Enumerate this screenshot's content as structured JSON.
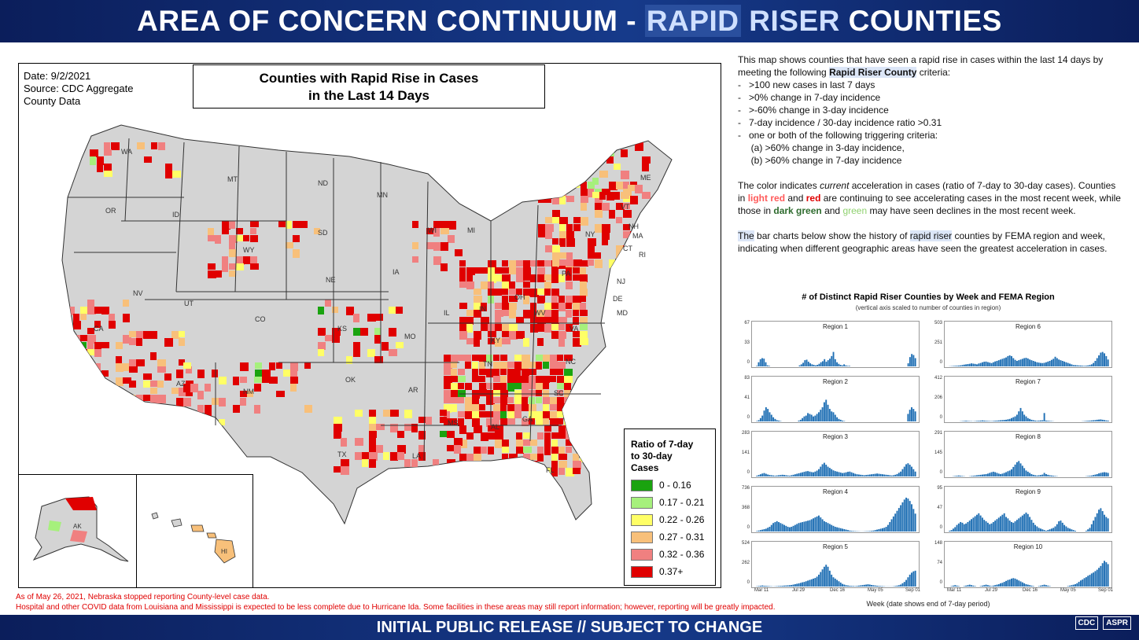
{
  "header": {
    "title_part1": "AREA OF CONCERN CONTINUUM - ",
    "title_part2": "RAPID",
    "title_part3": " RISER",
    "title_part4": " COUNTIES"
  },
  "map": {
    "date": "Date: 9/2/2021",
    "source_line1": "Source: CDC Aggregate",
    "source_line2": "County Data",
    "title_line1": "Counties with Rapid Rise in Cases",
    "title_line2": "in the Last 14 Days",
    "state_labels": [
      "WA",
      "OR",
      "ID",
      "MT",
      "ND",
      "SD",
      "WY",
      "MN",
      "WI",
      "MI",
      "NE",
      "IA",
      "NV",
      "UT",
      "CO",
      "CA",
      "KS",
      "MO",
      "IL",
      "IN",
      "OH",
      "PA",
      "NY",
      "VT",
      "ME",
      "NH",
      "MA",
      "CT",
      "RI",
      "NJ",
      "DE",
      "MD",
      "VA",
      "WV",
      "KY",
      "TN",
      "NC",
      "SC",
      "GA",
      "AL",
      "MS",
      "AR",
      "LA",
      "OK",
      "TX",
      "NM",
      "AZ",
      "FL",
      "AK",
      "HI"
    ]
  },
  "legend": {
    "title_line1": "Ratio of 7-day",
    "title_line2": "to 30-day",
    "title_line3": "Cases",
    "items": [
      {
        "label": "0 - 0.16",
        "color": "#1aa30f"
      },
      {
        "label": "0.17 - 0.21",
        "color": "#a6f07c"
      },
      {
        "label": "0.22 - 0.26",
        "color": "#ffff66"
      },
      {
        "label": "0.27 - 0.31",
        "color": "#f8c07a"
      },
      {
        "label": "0.32 - 0.36",
        "color": "#f08080"
      },
      {
        "label": "0.37+",
        "color": "#e00000"
      }
    ]
  },
  "notes": {
    "line1": "As of May 26, 2021, Nebraska stopped reporting County-level case data.",
    "line2": "Hospital and other COVID data from Louisiana and Mississippi is expected to be less complete due to Hurricane Ida. Some facilities in these areas may still report information; however, reporting will be greatly impacted."
  },
  "description": {
    "p1_a": "This map shows counties that have seen a rapid rise in cases within the last 14 days by meeting the following ",
    "p1_b": "Rapid Riser County",
    "p1_c": " criteria:",
    "criteria": [
      "-   >100 new cases in last 7 days",
      "-   >0% change in 7-day incidence",
      "-   >-60% change in 3-day incidence",
      "-   7-day incidence / 30-day incidence ratio >0.31",
      "-   one or both of the following triggering criteria:",
      "     (a) >60% change in 3-day incidence,",
      "     (b) >60% change in 7-day incidence"
    ],
    "p2_a": "The color indicates ",
    "p2_b": "current",
    "p2_c": " acceleration in cases (ratio of 7-day to 30-day cases). Counties in ",
    "p2_d": "light red",
    "p2_e": " and ",
    "p2_f": "red",
    "p2_g": "  are continuing to see accelerating cases in the most recent week, while those in ",
    "p2_h": "dark green",
    "p2_i": " and ",
    "p2_j": "green",
    "p2_k": "  may have seen declines in the most recent week.",
    "p3_a": "The",
    "p3_b": " bar charts below show the history of ",
    "p3_c": "rapid riser",
    "p3_d": " counties by FEMA region and week, indicating when different geographic areas have seen the greatest acceleration in cases."
  },
  "chart_data": {
    "type": "bar",
    "title": "# of Distinct Rapid Riser Counties by Week and FEMA Region",
    "subtitle": "(vertical axis scaled to number of counties in region)",
    "xlabel": "Week (date shows end of 7-day period)",
    "x_tick_labels": [
      "Mar 11",
      "Jul 29",
      "Dec 16",
      "May 05",
      "Sep 01"
    ],
    "panels": [
      {
        "name": "Region 1",
        "ymax": 67,
        "yticks": [
          "67",
          "33",
          "0"
        ],
        "values": [
          0,
          1,
          8,
          14,
          16,
          15,
          8,
          2,
          1,
          0,
          0,
          0,
          0,
          0,
          0,
          0,
          0,
          0,
          0,
          0,
          0,
          0,
          0,
          0,
          0,
          2,
          4,
          7,
          12,
          13,
          9,
          6,
          4,
          3,
          2,
          3,
          5,
          8,
          10,
          14,
          9,
          12,
          15,
          20,
          28,
          14,
          8,
          5,
          3,
          2,
          4,
          2,
          1,
          1,
          0,
          0,
          0,
          0,
          0,
          0,
          0,
          0,
          0,
          0,
          0,
          0,
          0,
          0,
          0,
          0,
          0,
          0,
          0,
          0,
          0,
          0,
          0,
          0,
          0,
          0,
          0,
          0,
          0,
          0,
          0,
          0,
          6,
          18,
          24,
          22,
          16
        ]
      },
      {
        "name": "Region 6",
        "ymax": 503,
        "yticks": [
          "503",
          "251",
          "0"
        ],
        "values": [
          0,
          2,
          4,
          6,
          8,
          10,
          12,
          15,
          20,
          26,
          30,
          34,
          38,
          44,
          40,
          36,
          30,
          42,
          50,
          60,
          68,
          70,
          62,
          55,
          48,
          60,
          72,
          80,
          90,
          100,
          110,
          120,
          130,
          150,
          160,
          150,
          120,
          95,
          80,
          90,
          100,
          110,
          120,
          125,
          115,
          100,
          90,
          80,
          70,
          60,
          55,
          50,
          48,
          52,
          60,
          70,
          80,
          95,
          110,
          140,
          120,
          100,
          90,
          80,
          70,
          60,
          50,
          40,
          30,
          20,
          18,
          16,
          14,
          12,
          10,
          8,
          10,
          14,
          20,
          30,
          50,
          80,
          120,
          160,
          200,
          210,
          190,
          150,
          100
        ]
      },
      {
        "name": "Region 2",
        "ymax": 83,
        "yticks": [
          "83",
          "41",
          "0"
        ],
        "values": [
          0,
          1,
          3,
          8,
          14,
          26,
          34,
          30,
          22,
          16,
          10,
          6,
          3,
          2,
          1,
          0,
          0,
          0,
          0,
          0,
          0,
          0,
          0,
          0,
          2,
          4,
          8,
          12,
          14,
          20,
          18,
          16,
          12,
          14,
          18,
          22,
          28,
          34,
          46,
          52,
          40,
          30,
          24,
          22,
          16,
          10,
          6,
          4,
          2,
          1,
          0,
          0,
          0,
          0,
          0,
          0,
          0,
          0,
          0,
          0,
          0,
          0,
          0,
          0,
          0,
          0,
          0,
          0,
          0,
          0,
          0,
          0,
          0,
          0,
          0,
          0,
          0,
          0,
          0,
          0,
          0,
          0,
          0,
          0,
          18,
          28,
          34,
          30,
          24
        ]
      },
      {
        "name": "Region 7",
        "ymax": 412,
        "yticks": [
          "412",
          "206",
          "0"
        ],
        "values": [
          0,
          0,
          0,
          0,
          0,
          0,
          0,
          2,
          4,
          6,
          8,
          6,
          4,
          3,
          2,
          4,
          6,
          8,
          10,
          12,
          10,
          8,
          6,
          5,
          4,
          6,
          8,
          10,
          12,
          14,
          16,
          18,
          20,
          25,
          30,
          40,
          50,
          60,
          80,
          120,
          160,
          120,
          80,
          60,
          40,
          30,
          20,
          15,
          10,
          8,
          10,
          12,
          14,
          100,
          10,
          8,
          6,
          4,
          2,
          0,
          0,
          0,
          0,
          0,
          0,
          0,
          0,
          0,
          0,
          0,
          0,
          0,
          0,
          0,
          2,
          4,
          6,
          8,
          10,
          12,
          14,
          16,
          20,
          22,
          24,
          20,
          16,
          12,
          10
        ]
      },
      {
        "name": "Region 3",
        "ymax": 283,
        "yticks": [
          "283",
          "141",
          "0"
        ],
        "values": [
          0,
          6,
          12,
          18,
          24,
          28,
          22,
          16,
          12,
          10,
          8,
          6,
          8,
          10,
          12,
          14,
          12,
          10,
          8,
          6,
          10,
          14,
          18,
          22,
          26,
          30,
          34,
          38,
          42,
          44,
          40,
          36,
          34,
          40,
          48,
          60,
          80,
          100,
          112,
          96,
          80,
          70,
          60,
          50,
          44,
          40,
          36,
          32,
          28,
          30,
          34,
          38,
          40,
          34,
          28,
          22,
          18,
          16,
          14,
          12,
          10,
          12,
          14,
          16,
          18,
          20,
          22,
          24,
          22,
          20,
          18,
          16,
          14,
          12,
          10,
          8,
          10,
          14,
          20,
          30,
          40,
          60,
          80,
          100,
          108,
          96,
          80,
          60,
          40
        ]
      },
      {
        "name": "Region 8",
        "ymax": 291,
        "yticks": [
          "291",
          "145",
          "0"
        ],
        "values": [
          0,
          0,
          0,
          2,
          4,
          6,
          8,
          6,
          4,
          2,
          0,
          0,
          2,
          4,
          6,
          8,
          10,
          12,
          14,
          16,
          18,
          20,
          24,
          30,
          36,
          40,
          36,
          30,
          24,
          20,
          24,
          30,
          36,
          44,
          50,
          60,
          80,
          100,
          120,
          130,
          110,
          90,
          70,
          50,
          40,
          30,
          20,
          14,
          10,
          8,
          10,
          12,
          16,
          30,
          20,
          14,
          10,
          8,
          6,
          4,
          2,
          0,
          0,
          0,
          0,
          0,
          0,
          0,
          0,
          0,
          0,
          0,
          0,
          0,
          0,
          0,
          2,
          4,
          6,
          8,
          12,
          16,
          20,
          26,
          30,
          34,
          36,
          34,
          30
        ]
      },
      {
        "name": "Region 4",
        "ymax": 736,
        "yticks": [
          "736",
          "368",
          "0"
        ],
        "values": [
          0,
          10,
          20,
          30,
          40,
          50,
          60,
          80,
          100,
          140,
          180,
          200,
          220,
          200,
          180,
          160,
          140,
          120,
          100,
          90,
          100,
          120,
          140,
          160,
          180,
          190,
          200,
          210,
          220,
          230,
          240,
          260,
          280,
          300,
          320,
          340,
          300,
          260,
          220,
          200,
          180,
          160,
          140,
          120,
          100,
          90,
          80,
          70,
          60,
          50,
          40,
          30,
          20,
          14,
          10,
          8,
          6,
          4,
          2,
          2,
          4,
          6,
          8,
          10,
          14,
          20,
          30,
          40,
          50,
          60,
          70,
          80,
          100,
          140,
          200,
          260,
          320,
          380,
          440,
          500,
          560,
          620,
          680,
          720,
          700,
          650,
          580,
          480,
          380
        ]
      },
      {
        "name": "Region 9",
        "ymax": 95,
        "yticks": [
          "95",
          "47",
          "0"
        ],
        "values": [
          0,
          2,
          4,
          8,
          12,
          18,
          22,
          26,
          24,
          20,
          22,
          26,
          30,
          34,
          38,
          42,
          46,
          50,
          44,
          38,
          32,
          28,
          24,
          20,
          22,
          26,
          30,
          34,
          38,
          42,
          46,
          50,
          40,
          36,
          30,
          26,
          24,
          28,
          32,
          36,
          40,
          44,
          48,
          52,
          48,
          40,
          32,
          24,
          18,
          14,
          10,
          8,
          6,
          4,
          2,
          4,
          6,
          8,
          10,
          14,
          20,
          28,
          30,
          24,
          18,
          14,
          10,
          8,
          6,
          4,
          2,
          0,
          0,
          0,
          0,
          0,
          2,
          6,
          10,
          20,
          30,
          40,
          50,
          60,
          64,
          56,
          46,
          40,
          36
        ]
      },
      {
        "name": "Region 5",
        "ymax": 524,
        "yticks": [
          "524",
          "262",
          "0"
        ],
        "values": [
          0,
          4,
          8,
          12,
          16,
          12,
          10,
          8,
          6,
          4,
          2,
          4,
          6,
          8,
          10,
          12,
          14,
          16,
          18,
          20,
          24,
          30,
          36,
          42,
          48,
          56,
          64,
          70,
          80,
          90,
          100,
          110,
          120,
          130,
          150,
          180,
          220,
          260,
          300,
          330,
          300,
          240,
          180,
          140,
          120,
          100,
          80,
          60,
          40,
          30,
          20,
          16,
          12,
          10,
          8,
          6,
          10,
          14,
          18,
          22,
          26,
          30,
          34,
          30,
          24,
          20,
          16,
          12,
          10,
          8,
          6,
          4,
          2,
          2,
          2,
          2,
          4,
          8,
          14,
          20,
          30,
          50,
          70,
          100,
          140,
          180,
          210,
          230,
          240
        ]
      },
      {
        "name": "Region 10",
        "ymax": 148,
        "yticks": [
          "148",
          "74",
          "0"
        ],
        "values": [
          0,
          0,
          2,
          4,
          6,
          4,
          2,
          0,
          0,
          2,
          4,
          6,
          8,
          6,
          4,
          2,
          0,
          0,
          2,
          4,
          6,
          8,
          6,
          4,
          2,
          4,
          6,
          8,
          10,
          14,
          16,
          20,
          24,
          28,
          30,
          34,
          36,
          34,
          30,
          26,
          22,
          18,
          14,
          10,
          8,
          6,
          4,
          2,
          0,
          0,
          2,
          4,
          6,
          8,
          6,
          4,
          2,
          0,
          0,
          0,
          0,
          0,
          0,
          0,
          0,
          0,
          2,
          4,
          6,
          8,
          10,
          14,
          20,
          26,
          30,
          36,
          40,
          46,
          50,
          56,
          60,
          66,
          72,
          80,
          88,
          100,
          110,
          104,
          96
        ]
      }
    ]
  },
  "footer": {
    "text": "INITIAL PUBLIC RELEASE // SUBJECT TO CHANGE",
    "logo1": "CDC",
    "logo2": "ASPR"
  }
}
